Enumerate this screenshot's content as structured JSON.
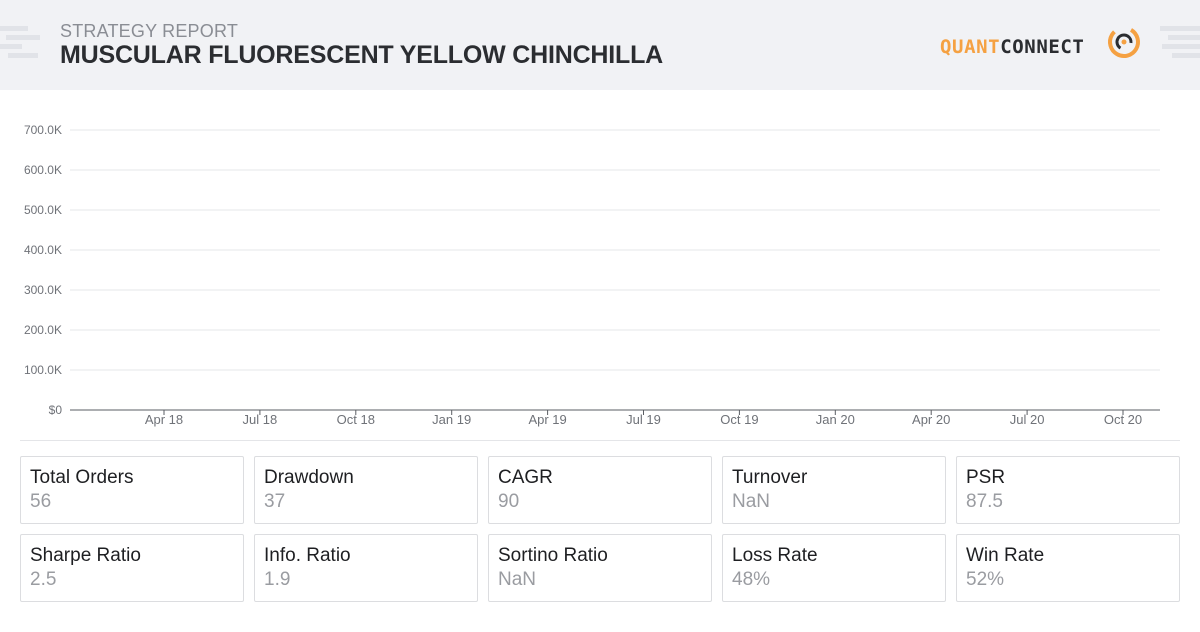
{
  "header": {
    "subtitle": "STRATEGY REPORT",
    "title": "MUSCULAR FLUORESCENT YELLOW CHINCHILLA",
    "logo_quant": "QUANT",
    "logo_connect": "CONNECT"
  },
  "colors": {
    "brand_orange": "#f5a142",
    "header_bg": "#f1f2f5",
    "title_text": "#2b2d31",
    "muted_text": "#8a8d94"
  },
  "chart_data": {
    "type": "line",
    "title": "",
    "xlabel": "",
    "ylabel": "",
    "x_tick_labels": [
      "Apr 18",
      "Jul 18",
      "Oct 18",
      "Jan 19",
      "Apr 19",
      "Jul 19",
      "Oct 19",
      "Jan 20",
      "Apr 20",
      "Jul 20",
      "Oct 20"
    ],
    "y_tick_labels": [
      "$0",
      "100.0K",
      "200.0K",
      "300.0K",
      "400.0K",
      "500.0K",
      "600.0K",
      "700.0K"
    ],
    "ylim": [
      0,
      700000
    ],
    "grid": true,
    "series": []
  },
  "metrics": [
    {
      "label": "Total Orders",
      "value": "56"
    },
    {
      "label": "Drawdown",
      "value": "37"
    },
    {
      "label": "CAGR",
      "value": "90"
    },
    {
      "label": "Turnover",
      "value": "NaN"
    },
    {
      "label": "PSR",
      "value": "87.5"
    },
    {
      "label": "Sharpe Ratio",
      "value": "2.5"
    },
    {
      "label": "Info. Ratio",
      "value": "1.9"
    },
    {
      "label": "Sortino Ratio",
      "value": "NaN"
    },
    {
      "label": "Loss Rate",
      "value": "48%"
    },
    {
      "label": "Win Rate",
      "value": "52%"
    }
  ]
}
